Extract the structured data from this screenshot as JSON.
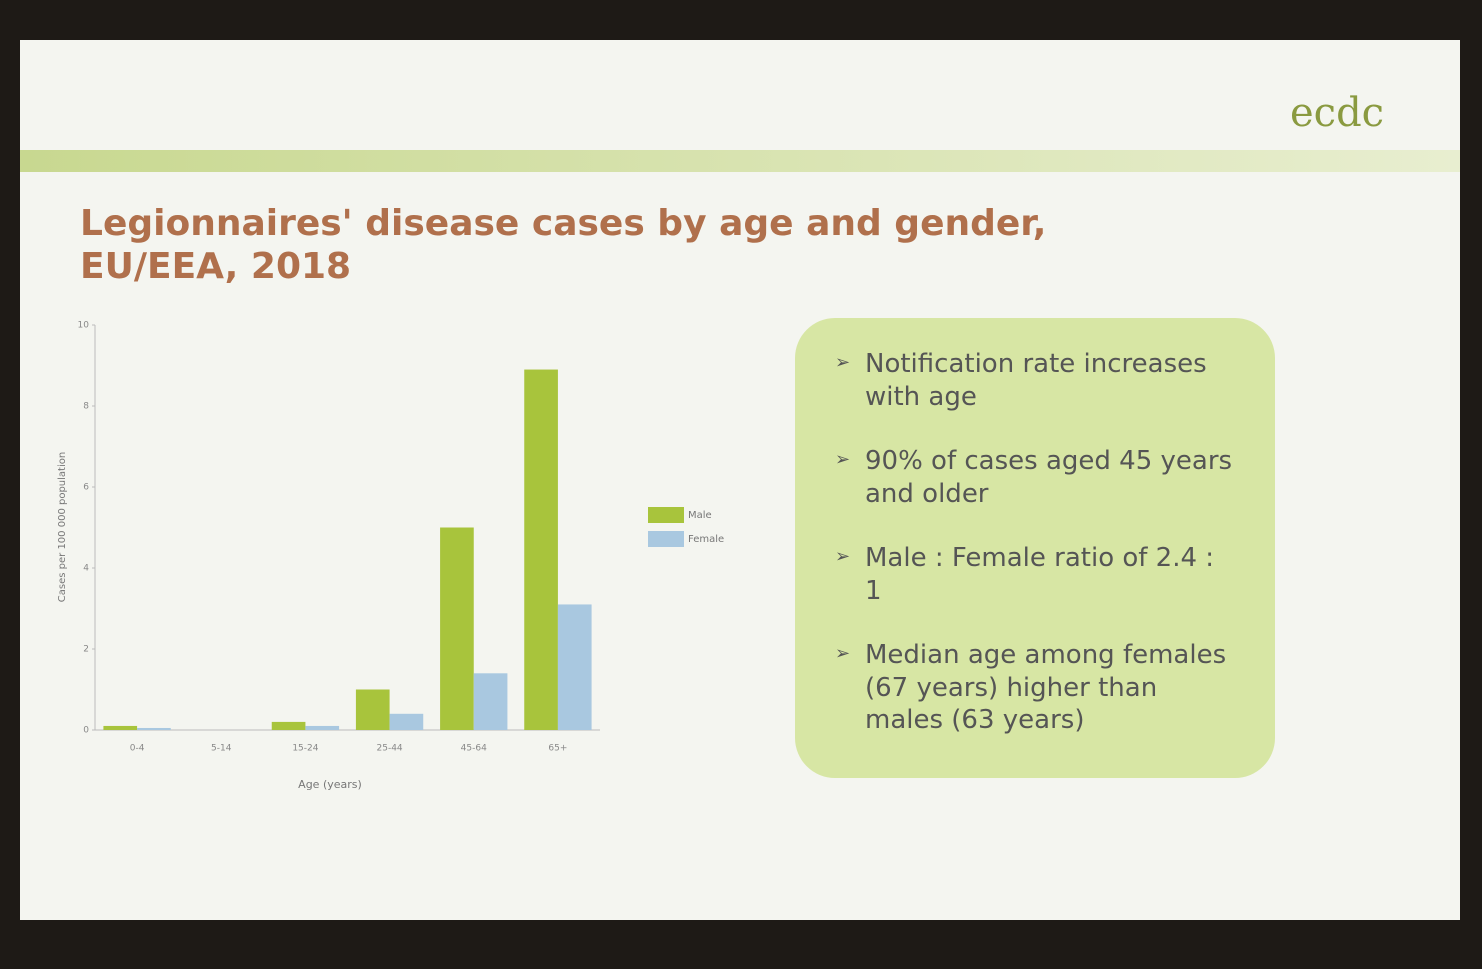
{
  "chart_data": {
    "type": "bar",
    "title": [
      "Legionnaires' disease cases by age and gender,",
      "EU/EEA, 2018"
    ],
    "categories": [
      "0-4",
      "5-14",
      "15-24",
      "25-44",
      "45-64",
      "65+"
    ],
    "series": [
      {
        "name": "Male",
        "color": "#a8c43c",
        "values": [
          0.1,
          0,
          0.2,
          1.0,
          5.0,
          8.9
        ]
      },
      {
        "name": "Female",
        "color": "#a9c8e0",
        "values": [
          0.05,
          0,
          0.1,
          0.4,
          1.4,
          3.1
        ]
      }
    ],
    "xlabel": "Age (years)",
    "ylabel": "Cases per 100 000 population",
    "ylim": [
      0,
      10
    ],
    "yticks": [
      0,
      2,
      4,
      6,
      8,
      10
    ],
    "legend": "right"
  },
  "notes": [
    "Notification rate increases with age",
    "90% of cases aged 45 years and older",
    "Male : Female ratio of 2.4 : 1",
    "Median age among females (67 years) higher than males (63 years)"
  ],
  "logo": "ecdc"
}
